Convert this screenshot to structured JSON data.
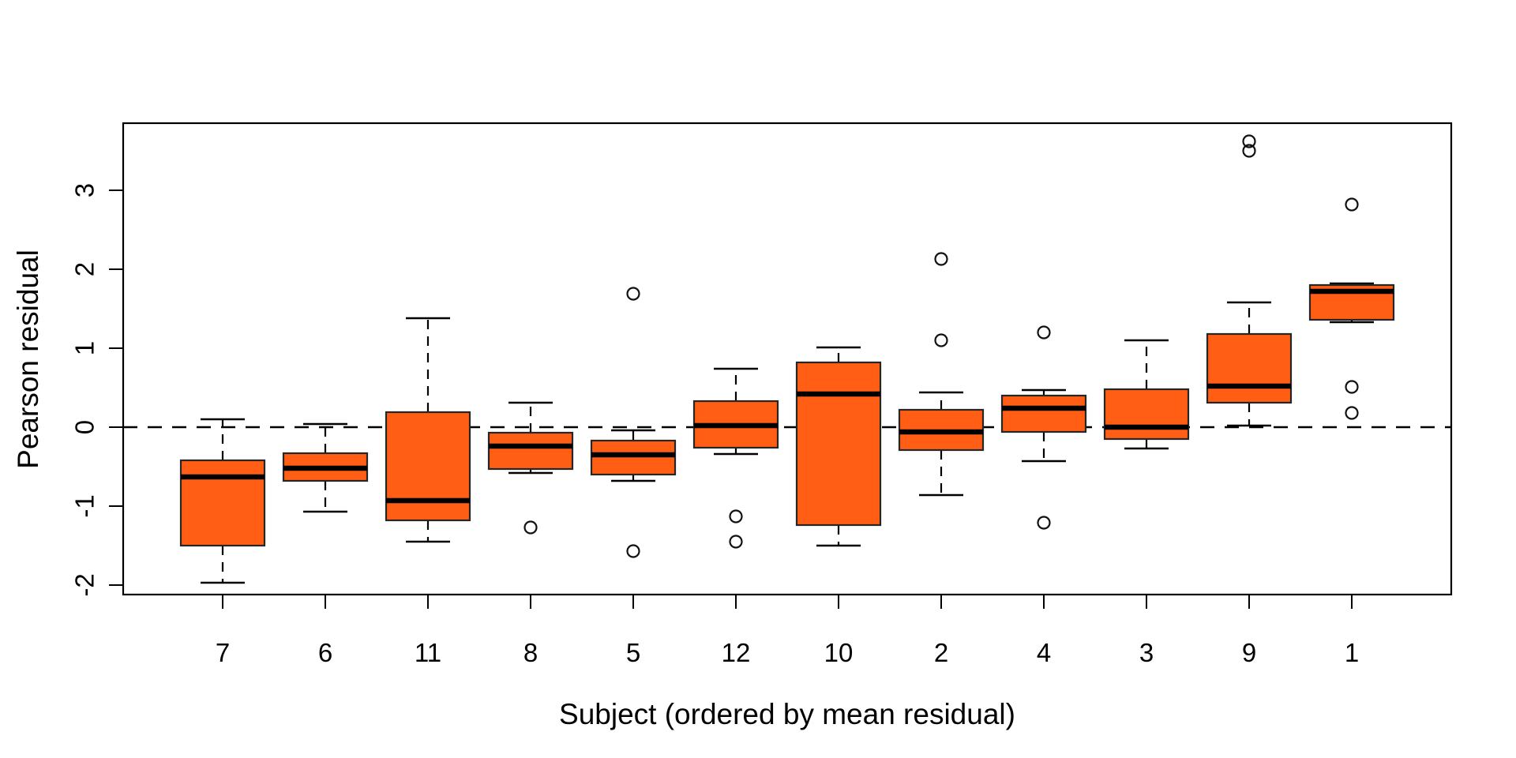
{
  "chart_data": {
    "type": "boxplot",
    "title": "",
    "xlabel": "Subject (ordered by mean residual)",
    "ylabel": "Pearson residual",
    "x_tick_labels": [
      "7",
      "6",
      "11",
      "8",
      "5",
      "12",
      "10",
      "2",
      "4",
      "3",
      "9",
      "1"
    ],
    "y_ticks": [
      3,
      2,
      1,
      0,
      -1,
      -2
    ],
    "ylim": [
      -2.12,
      3.84
    ],
    "reference_line_y": 0,
    "grid": "off",
    "legend": "none",
    "colors": {
      "box_fill": "#FF5E14",
      "box_border": "#262626",
      "line": "#000000",
      "background": "#ffffff"
    },
    "series": [
      {
        "subject": "7",
        "lower_whisker": -1.97,
        "q1": -1.5,
        "median": -0.63,
        "q3": -0.42,
        "upper_whisker": 0.1,
        "outliers": []
      },
      {
        "subject": "6",
        "lower_whisker": -1.07,
        "q1": -0.68,
        "median": -0.52,
        "q3": -0.33,
        "upper_whisker": 0.04,
        "outliers": []
      },
      {
        "subject": "11",
        "lower_whisker": -1.45,
        "q1": -1.18,
        "median": -0.93,
        "q3": 0.19,
        "upper_whisker": 1.38,
        "outliers": []
      },
      {
        "subject": "8",
        "lower_whisker": -0.58,
        "q1": -0.53,
        "median": -0.24,
        "q3": -0.07,
        "upper_whisker": 0.31,
        "outliers": [
          -1.27
        ]
      },
      {
        "subject": "5",
        "lower_whisker": -0.68,
        "q1": -0.6,
        "median": -0.35,
        "q3": -0.17,
        "upper_whisker": -0.04,
        "outliers": [
          1.69,
          -1.57
        ]
      },
      {
        "subject": "12",
        "lower_whisker": -0.34,
        "q1": -0.26,
        "median": 0.02,
        "q3": 0.33,
        "upper_whisker": 0.74,
        "outliers": [
          -1.13,
          -1.45
        ]
      },
      {
        "subject": "10",
        "lower_whisker": -1.5,
        "q1": -1.24,
        "median": 0.42,
        "q3": 0.82,
        "upper_whisker": 1.01,
        "outliers": []
      },
      {
        "subject": "2",
        "lower_whisker": -0.86,
        "q1": -0.29,
        "median": -0.06,
        "q3": 0.22,
        "upper_whisker": 0.44,
        "outliers": [
          2.13,
          1.1
        ]
      },
      {
        "subject": "4",
        "lower_whisker": -0.43,
        "q1": -0.06,
        "median": 0.24,
        "q3": 0.4,
        "upper_whisker": 0.47,
        "outliers": [
          1.2,
          -1.21
        ]
      },
      {
        "subject": "3",
        "lower_whisker": -0.27,
        "q1": -0.15,
        "median": 0.0,
        "q3": 0.48,
        "upper_whisker": 1.1,
        "outliers": []
      },
      {
        "subject": "9",
        "lower_whisker": 0.02,
        "q1": 0.31,
        "median": 0.52,
        "q3": 1.18,
        "upper_whisker": 1.58,
        "outliers": [
          3.62,
          3.5
        ]
      },
      {
        "subject": "1",
        "lower_whisker": 1.33,
        "q1": 1.36,
        "median": 1.72,
        "q3": 1.8,
        "upper_whisker": 1.82,
        "outliers": [
          2.82,
          0.51,
          0.18
        ]
      }
    ]
  }
}
